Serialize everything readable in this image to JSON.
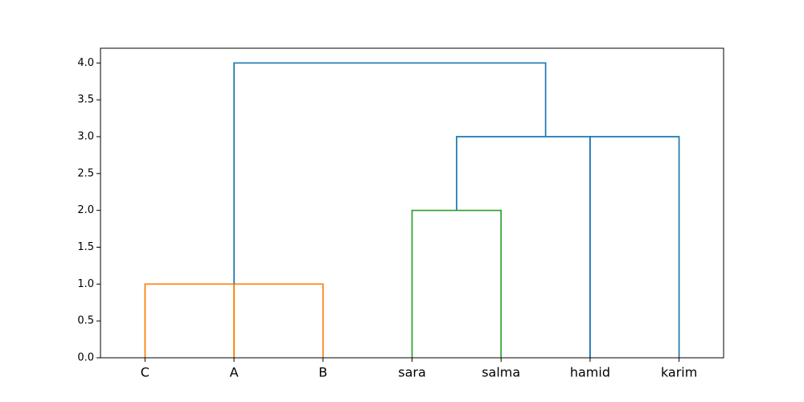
{
  "chart_data": {
    "type": "dendrogram",
    "title": "",
    "xlabel": "",
    "ylabel": "",
    "leaves": [
      "C",
      "A",
      "B",
      "sara",
      "salma",
      "hamid",
      "karim"
    ],
    "ylim": [
      0.0,
      4.2
    ],
    "yticks": [
      "0.0",
      "0.5",
      "1.0",
      "1.5",
      "2.0",
      "2.5",
      "3.0",
      "3.5",
      "4.0"
    ],
    "ytick_values": [
      0.0,
      0.5,
      1.0,
      1.5,
      2.0,
      2.5,
      3.0,
      3.5,
      4.0
    ],
    "grid": false,
    "links": [
      {
        "xs": [
          0,
          0,
          1,
          1
        ],
        "ys": [
          0.0,
          1.0,
          1.0,
          0.0
        ],
        "color": "#ff7f0e"
      },
      {
        "xs": [
          1,
          1,
          2,
          2
        ],
        "ys": [
          0.0,
          1.0,
          1.0,
          0.0
        ],
        "color": "#ff7f0e"
      },
      {
        "xs": [
          3,
          3,
          4,
          4
        ],
        "ys": [
          0.0,
          2.0,
          2.0,
          0.0
        ],
        "color": "#2ca02c"
      },
      {
        "xs": [
          3.5,
          3.5,
          5,
          5
        ],
        "ys": [
          2.0,
          3.0,
          3.0,
          0.0
        ],
        "color": "#1f77b4"
      },
      {
        "xs": [
          5,
          5,
          6,
          6
        ],
        "ys": [
          0.0,
          3.0,
          3.0,
          0.0
        ],
        "color": "#1f77b4"
      },
      {
        "xs": [
          1,
          1,
          4.5,
          4.5
        ],
        "ys": [
          1.0,
          4.0,
          4.0,
          3.0
        ],
        "color": "#1f77b4"
      }
    ]
  }
}
